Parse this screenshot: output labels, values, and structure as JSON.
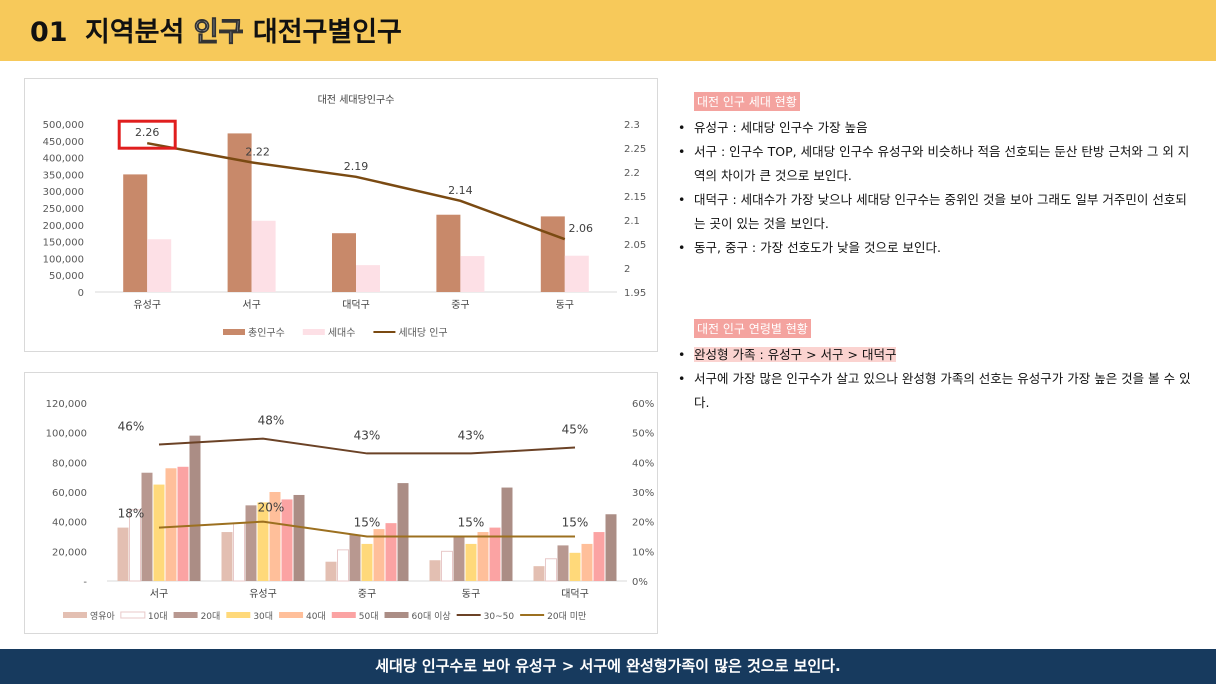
{
  "header": {
    "number": "01",
    "title_main": "지역분석",
    "title_highlight": "인구",
    "title_rest": "대전구별인구"
  },
  "chart_data": [
    {
      "type": "bar",
      "title": "대전 세대당인구수",
      "categories": [
        "유성구",
        "서구",
        "대덕구",
        "중구",
        "동구"
      ],
      "series": [
        {
          "name": "총인구수",
          "type": "bar",
          "axis": "left",
          "color": "#c8896a",
          "values": [
            350000,
            472000,
            175000,
            230000,
            225000
          ]
        },
        {
          "name": "세대수",
          "type": "bar",
          "axis": "left",
          "color": "#fde0e6",
          "values": [
            157000,
            212000,
            80000,
            107000,
            108000
          ]
        },
        {
          "name": "세대당 인구",
          "type": "line",
          "axis": "right",
          "color": "#7a4a12",
          "values": [
            2.26,
            2.22,
            2.19,
            2.14,
            2.06
          ],
          "labels": [
            "2.26",
            "2.22",
            "2.19",
            "2.14",
            "2.06"
          ]
        }
      ],
      "ylim": [
        0,
        500000
      ],
      "y_ticks": [
        "0",
        "50,000",
        "100,000",
        "150,000",
        "200,000",
        "250,000",
        "300,000",
        "350,000",
        "400,000",
        "450,000",
        "500,000"
      ],
      "y2lim": [
        1.95,
        2.3
      ],
      "y2_ticks": [
        "1.95",
        "2",
        "2.05",
        "2.1",
        "2.15",
        "2.2",
        "2.25",
        "2.3"
      ],
      "highlight_color": "#e01e1e",
      "legend_position": "bottom"
    },
    {
      "type": "bar",
      "title": "",
      "categories": [
        "서구",
        "유성구",
        "중구",
        "동구",
        "대덕구"
      ],
      "series": [
        {
          "name": "영유아",
          "type": "bar",
          "axis": "left",
          "color": "#e3bfb2",
          "values": [
            36000,
            33000,
            13000,
            14000,
            10000
          ]
        },
        {
          "name": "10대",
          "type": "bar",
          "axis": "left",
          "color": "#ffffff",
          "stroke": "#e8c9c9",
          "values": [
            48000,
            39000,
            21000,
            20000,
            15000
          ]
        },
        {
          "name": "20대",
          "type": "bar",
          "axis": "left",
          "color": "#b89890",
          "values": [
            73000,
            51000,
            31000,
            30000,
            24000
          ]
        },
        {
          "name": "30대",
          "type": "bar",
          "axis": "left",
          "color": "#ffd97a",
          "values": [
            65000,
            53000,
            25000,
            25000,
            19000
          ]
        },
        {
          "name": "40대",
          "type": "bar",
          "axis": "left",
          "color": "#ffbf9a",
          "values": [
            76000,
            60000,
            35000,
            33000,
            25000
          ]
        },
        {
          "name": "50대",
          "type": "bar",
          "axis": "left",
          "color": "#fba3a3",
          "values": [
            77000,
            55000,
            39000,
            36000,
            33000
          ]
        },
        {
          "name": "60대 이상",
          "type": "bar",
          "axis": "left",
          "color": "#ab8d85",
          "values": [
            98000,
            58000,
            66000,
            63000,
            45000
          ]
        },
        {
          "name": "30~50",
          "type": "line",
          "axis": "right",
          "color": "#6b4226",
          "values": [
            46,
            48,
            43,
            43,
            45
          ],
          "labels": [
            "46%",
            "48%",
            "43%",
            "43%",
            "45%"
          ]
        },
        {
          "name": "20대 미만",
          "type": "line",
          "axis": "right",
          "color": "#9c7020",
          "values": [
            18,
            20,
            15,
            15,
            15
          ],
          "labels": [
            "18%",
            "20%",
            "15%",
            "15%",
            "15%"
          ]
        }
      ],
      "ylim": [
        0,
        120000
      ],
      "y_ticks": [
        "-",
        "20,000",
        "40,000",
        "60,000",
        "80,000",
        "100,000",
        "120,000"
      ],
      "y2lim": [
        0,
        60
      ],
      "y2_ticks": [
        "0%",
        "10%",
        "20%",
        "30%",
        "40%",
        "50%",
        "60%"
      ],
      "legend_position": "bottom"
    }
  ],
  "notes": {
    "section1": {
      "title": "대전 인구 세대 현황",
      "items": [
        "유성구 : 세대당 인구수 가장 높음",
        "서구 : 인구수 TOP, 세대당 인구수 유성구와 비슷하나 적음 선호되는 둔산 탄방 근처와 그 외 지역의 차이가 큰 것으로 보인다.",
        "대덕구 : 세대수가 가장 낮으나 세대당 인구수는 중위인 것을 보아 그래도 일부 거주민이 선호되는 곳이 있는 것을 보인다.",
        "동구, 중구 : 가장 선호도가 낮을 것으로 보인다."
      ]
    },
    "section2": {
      "title": "대전 인구 연령별 현황",
      "items": [
        "완성형 가족 : 유성구 > 서구 > 대덕구",
        "서구에 가장 많은 인구수가 살고 있으나 완성형 가족의 선호는 유성구가 가장 높은 것을 볼 수 있다."
      ]
    }
  },
  "footer": {
    "text": "세대당 인구수로 보아 유성구 > 서구에 완성형가족이 많은 것으로 보인다."
  }
}
